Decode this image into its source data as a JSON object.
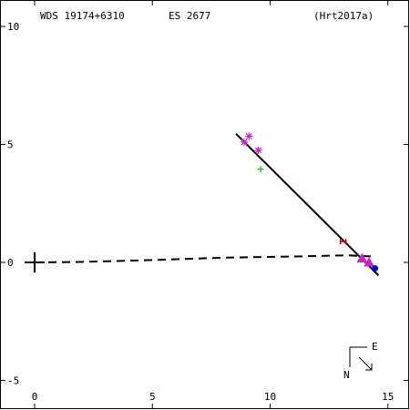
{
  "header": {
    "wds_id": "WDS 19174+6310",
    "discoverer": "ES 2677",
    "orbit_ref": "(Hrt2017a)"
  },
  "compass": {
    "east_label": "E",
    "north_label": "N"
  },
  "chart_data": {
    "type": "scatter",
    "title": "",
    "xlabel": "",
    "ylabel": "",
    "xlim": [
      -1.5,
      15.8
    ],
    "ylim": [
      -5.5,
      10.5
    ],
    "x_ticks": [
      0,
      5,
      10,
      15
    ],
    "x_tick_labels": [
      "0",
      "5",
      "10",
      "15"
    ],
    "y_ticks": [
      10,
      5,
      0,
      -5
    ],
    "y_tick_labels": [
      "10",
      "5",
      "0",
      "-5"
    ],
    "primary": {
      "x": 0,
      "y": 0
    },
    "fit_line": {
      "x": [
        8.55,
        14.6
      ],
      "y": [
        5.45,
        -0.55
      ]
    },
    "dashed_path": {
      "x": [
        0,
        2,
        5,
        8,
        11,
        13.3,
        14.4
      ],
      "y": [
        0,
        0.02,
        0.1,
        0.2,
        0.25,
        0.3,
        0.25
      ]
    },
    "series": [
      {
        "marker": "asterisk",
        "color": "#cc22cc",
        "points": [
          [
            9.1,
            5.35
          ],
          [
            8.9,
            5.1
          ],
          [
            9.5,
            4.75
          ]
        ]
      },
      {
        "marker": "plus",
        "color": "#22aa22",
        "points": [
          [
            9.6,
            3.95
          ]
        ]
      },
      {
        "marker": "h-bar",
        "color": "#cc0000",
        "points": [
          [
            13.1,
            0.88
          ]
        ]
      },
      {
        "marker": "triangle",
        "color": "#cc22cc",
        "points": [
          [
            13.9,
            0.17
          ],
          [
            14.2,
            0.0
          ]
        ]
      },
      {
        "marker": "dot",
        "color": "#0000cc",
        "points": [
          [
            14.45,
            -0.25
          ]
        ]
      }
    ]
  }
}
